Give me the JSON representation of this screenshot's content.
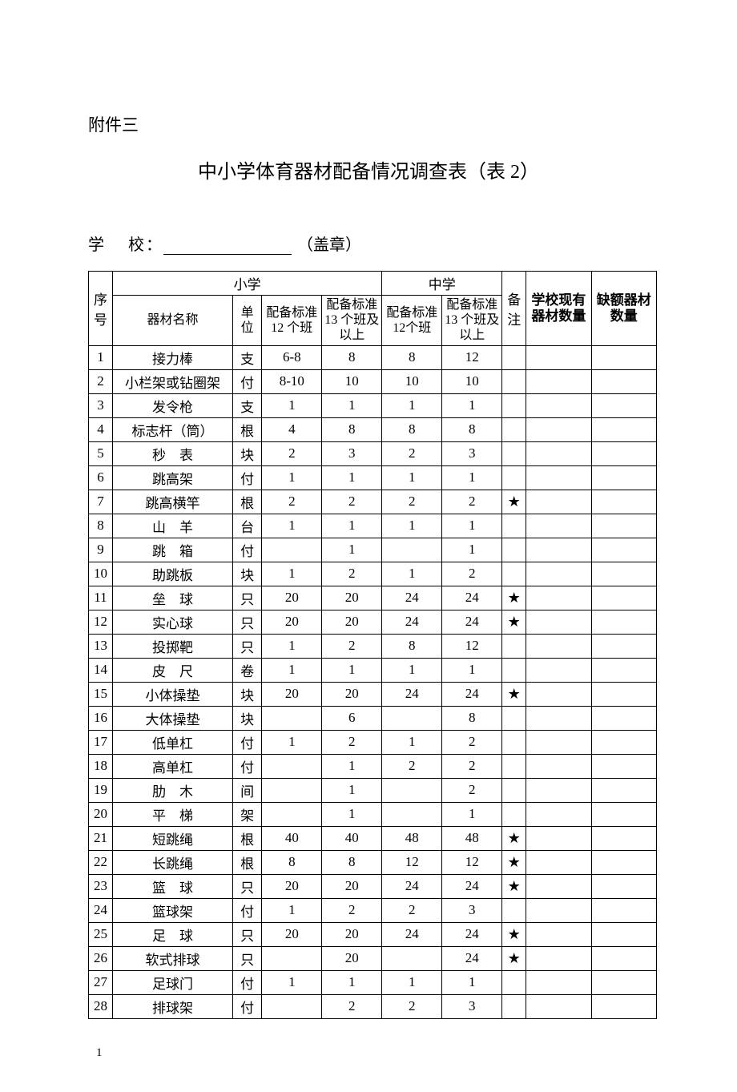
{
  "attachment_label": "附件三",
  "title": "中小学体育器材配备情况调查表（表 2）",
  "school_label_1": "学",
  "school_label_2": "校：",
  "seal_text": "（盖章）",
  "headers": {
    "seq": "序号",
    "primary": "小学",
    "middle": "中学",
    "note": "备注",
    "have": "学校现有器材数量",
    "lack": "缺额器材数量",
    "equip_name": "器材名称",
    "unit": "单位",
    "std_p12": "配备标准 12 个班",
    "std_p13": "配备标准13 个班及以上",
    "std_m12": "配备标准 12个班",
    "std_m13": "配备标准13 个班及以上"
  },
  "rows": [
    {
      "n": "1",
      "name": "接力棒",
      "spaced": false,
      "unit": "支",
      "p12": "6-8",
      "p13": "8",
      "m12": "8",
      "m13": "12",
      "note": ""
    },
    {
      "n": "2",
      "name": "小栏架或钻圈架",
      "spaced": false,
      "unit": "付",
      "p12": "8-10",
      "p13": "10",
      "m12": "10",
      "m13": "10",
      "note": ""
    },
    {
      "n": "3",
      "name": "发令枪",
      "spaced": false,
      "unit": "支",
      "p12": "1",
      "p13": "1",
      "m12": "1",
      "m13": "1",
      "note": ""
    },
    {
      "n": "4",
      "name": "标志杆（筒）",
      "spaced": false,
      "unit": "根",
      "p12": "4",
      "p13": "8",
      "m12": "8",
      "m13": "8",
      "note": ""
    },
    {
      "n": "5",
      "name": "秒　表",
      "spaced": false,
      "unit": "块",
      "p12": "2",
      "p13": "3",
      "m12": "2",
      "m13": "3",
      "note": ""
    },
    {
      "n": "6",
      "name": "跳高架",
      "spaced": false,
      "unit": "付",
      "p12": "1",
      "p13": "1",
      "m12": "1",
      "m13": "1",
      "note": ""
    },
    {
      "n": "7",
      "name": "跳高横竿",
      "spaced": false,
      "unit": "根",
      "p12": "2",
      "p13": "2",
      "m12": "2",
      "m13": "2",
      "note": "★"
    },
    {
      "n": "8",
      "name": "山　羊",
      "spaced": false,
      "unit": "台",
      "p12": "1",
      "p13": "1",
      "m12": "1",
      "m13": "1",
      "note": ""
    },
    {
      "n": "9",
      "name": "跳　箱",
      "spaced": false,
      "unit": "付",
      "p12": "",
      "p13": "1",
      "m12": "",
      "m13": "1",
      "note": ""
    },
    {
      "n": "10",
      "name": "助跳板",
      "spaced": false,
      "unit": "块",
      "p12": "1",
      "p13": "2",
      "m12": "1",
      "m13": "2",
      "note": ""
    },
    {
      "n": "11",
      "name": "垒　球",
      "spaced": false,
      "unit": "只",
      "p12": "20",
      "p13": "20",
      "m12": "24",
      "m13": "24",
      "note": "★"
    },
    {
      "n": "12",
      "name": "实心球",
      "spaced": false,
      "unit": "只",
      "p12": "20",
      "p13": "20",
      "m12": "24",
      "m13": "24",
      "note": "★"
    },
    {
      "n": "13",
      "name": "投掷靶",
      "spaced": false,
      "unit": "只",
      "p12": "1",
      "p13": "2",
      "m12": "8",
      "m13": "12",
      "note": ""
    },
    {
      "n": "14",
      "name": "皮　尺",
      "spaced": false,
      "unit": "卷",
      "p12": "1",
      "p13": "1",
      "m12": "1",
      "m13": "1",
      "note": ""
    },
    {
      "n": "15",
      "name": "小体操垫",
      "spaced": false,
      "unit": "块",
      "p12": "20",
      "p13": "20",
      "m12": "24",
      "m13": "24",
      "note": "★"
    },
    {
      "n": "16",
      "name": "大体操垫",
      "spaced": false,
      "unit": "块",
      "p12": "",
      "p13": "6",
      "m12": "",
      "m13": "8",
      "note": ""
    },
    {
      "n": "17",
      "name": "低单杠",
      "spaced": false,
      "unit": "付",
      "p12": "1",
      "p13": "2",
      "m12": "1",
      "m13": "2",
      "note": ""
    },
    {
      "n": "18",
      "name": "高单杠",
      "spaced": false,
      "unit": "付",
      "p12": "",
      "p13": "1",
      "m12": "2",
      "m13": "2",
      "note": ""
    },
    {
      "n": "19",
      "name": "肋　木",
      "spaced": false,
      "unit": "间",
      "p12": "",
      "p13": "1",
      "m12": "",
      "m13": "2",
      "note": ""
    },
    {
      "n": "20",
      "name": "平　梯",
      "spaced": false,
      "unit": "架",
      "p12": "",
      "p13": "1",
      "m12": "",
      "m13": "1",
      "note": ""
    },
    {
      "n": "21",
      "name": "短跳绳",
      "spaced": false,
      "unit": "根",
      "p12": "40",
      "p13": "40",
      "m12": "48",
      "m13": "48",
      "note": "★"
    },
    {
      "n": "22",
      "name": "长跳绳",
      "spaced": false,
      "unit": "根",
      "p12": "8",
      "p13": "8",
      "m12": "12",
      "m13": "12",
      "note": "★"
    },
    {
      "n": "23",
      "name": "篮　球",
      "spaced": false,
      "unit": "只",
      "p12": "20",
      "p13": "20",
      "m12": "24",
      "m13": "24",
      "note": "★"
    },
    {
      "n": "24",
      "name": "篮球架",
      "spaced": false,
      "unit": "付",
      "p12": "1",
      "p13": "2",
      "m12": "2",
      "m13": "3",
      "note": ""
    },
    {
      "n": "25",
      "name": "足　球",
      "spaced": false,
      "unit": "只",
      "p12": "20",
      "p13": "20",
      "m12": "24",
      "m13": "24",
      "note": "★"
    },
    {
      "n": "26",
      "name": "软式排球",
      "spaced": false,
      "unit": "只",
      "p12": "",
      "p13": "20",
      "m12": "",
      "m13": "24",
      "note": "★"
    },
    {
      "n": "27",
      "name": "足球门",
      "spaced": false,
      "unit": "付",
      "p12": "1",
      "p13": "1",
      "m12": "1",
      "m13": "1",
      "note": ""
    },
    {
      "n": "28",
      "name": "排球架",
      "spaced": false,
      "unit": "付",
      "p12": "",
      "p13": "2",
      "m12": "2",
      "m13": "3",
      "note": ""
    }
  ],
  "page_number": "1"
}
